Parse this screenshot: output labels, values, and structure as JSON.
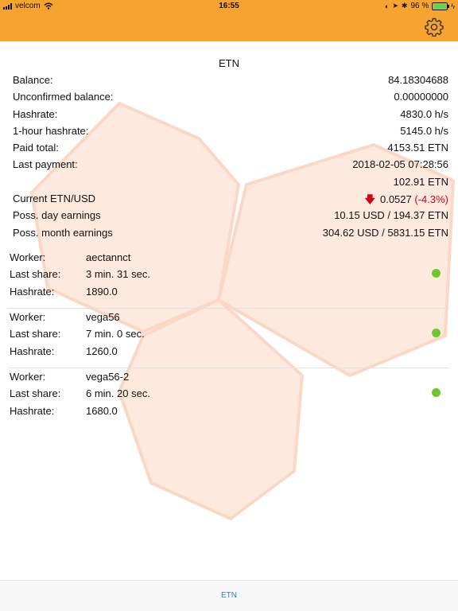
{
  "status_bar": {
    "carrier": "velcom",
    "time": "16:55",
    "battery": "96 %",
    "battery_level": 0.96
  },
  "icons": {
    "settings": "gear-icon",
    "wifi": "wifi-icon",
    "signal": "signal-icon",
    "battery": "battery-icon",
    "down_arrow": "arrow-down-icon"
  },
  "colors": {
    "header": "#f6a330",
    "online_dot": "#6cc82b",
    "negative": "#d0021b",
    "tab": "#2a7fd4"
  },
  "main": {
    "title": "ETN",
    "stats": [
      {
        "label": "Balance:",
        "value": "84.18304688"
      },
      {
        "label": "Unconfirmed balance:",
        "value": "0.00000000"
      },
      {
        "label": "Hashrate:",
        "value": "4830.0 h/s"
      },
      {
        "label": "1-hour hashrate:",
        "value": "5145.0 h/s"
      },
      {
        "label": "Paid total:",
        "value": "4153.51 ETN"
      },
      {
        "label": "Last payment:",
        "value": "2018-02-05 07:28:56"
      },
      {
        "label": "",
        "value": "102.91 ETN"
      }
    ],
    "price": {
      "label": "Current ETN/USD",
      "value": "0.0527",
      "change": "(-4.3%)"
    },
    "earnings": [
      {
        "label": "Poss. day earnings",
        "value": "10.15 USD / 194.37 ETN"
      },
      {
        "label": "Poss. month earnings",
        "value": "304.62 USD / 5831.15 ETN"
      }
    ]
  },
  "worker_labels": {
    "worker": "Worker:",
    "last_share": "Last share:",
    "hashrate": "Hashrate:"
  },
  "workers": [
    {
      "name": "aectannct",
      "last_share": "3 min. 31 sec.",
      "hashrate": "1890.0",
      "status": "online"
    },
    {
      "name": "vega56",
      "last_share": "7 min. 0 sec.",
      "hashrate": "1260.0",
      "status": "online"
    },
    {
      "name": "vega56-2",
      "last_share": "6 min. 20 sec.",
      "hashrate": "1680.0",
      "status": "online"
    }
  ],
  "tab_bar": {
    "tabs": [
      {
        "label": "ETN"
      }
    ]
  }
}
